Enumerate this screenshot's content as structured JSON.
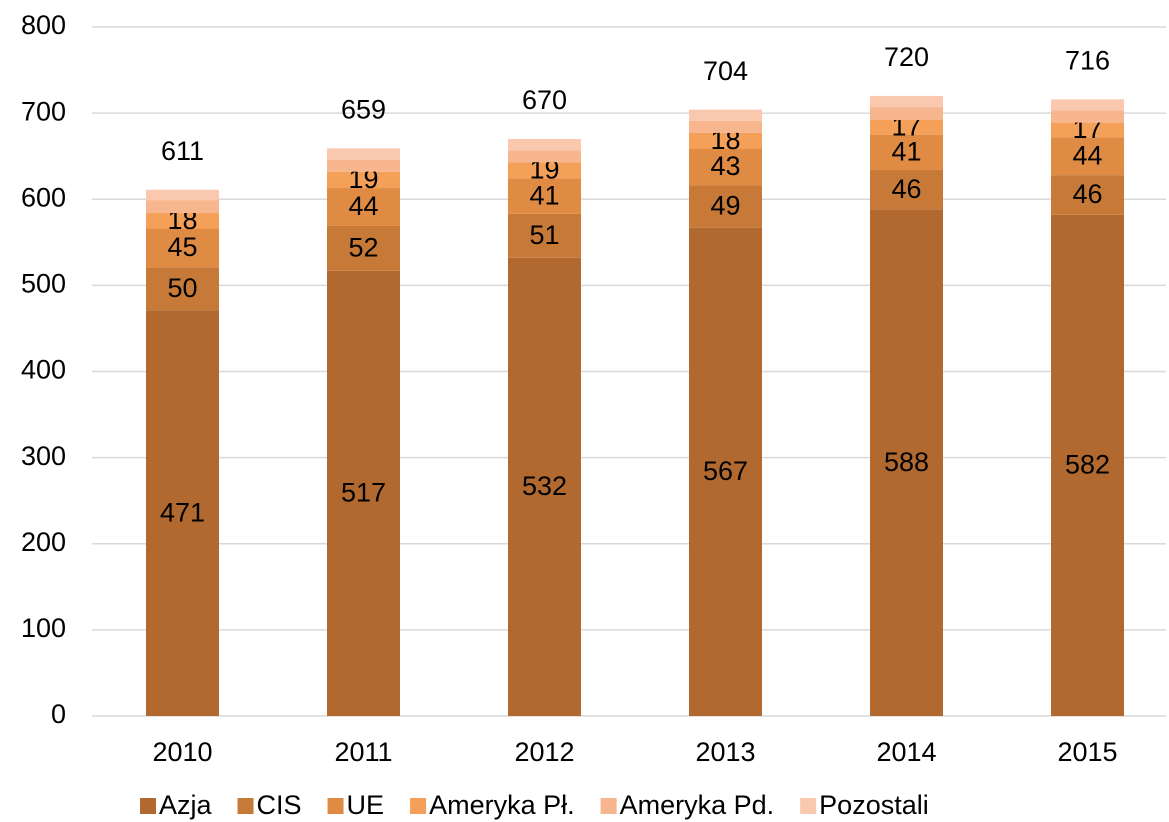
{
  "chart_data": {
    "type": "stacked_bar",
    "categories": [
      "2010",
      "2011",
      "2012",
      "2013",
      "2014",
      "2015"
    ],
    "series": [
      {
        "name": "Azja",
        "color": "#b1692f",
        "labels": true,
        "values": [
          471,
          517,
          532,
          567,
          588,
          582
        ]
      },
      {
        "name": "CIS",
        "color": "#c77a37",
        "labels": true,
        "values": [
          50,
          52,
          51,
          49,
          46,
          46
        ]
      },
      {
        "name": "UE",
        "color": "#e08b44",
        "labels": true,
        "values": [
          45,
          44,
          41,
          43,
          41,
          44
        ]
      },
      {
        "name": "Ameryka Pł.",
        "color": "#f5a058",
        "labels": true,
        "values": [
          18,
          19,
          19,
          18,
          17,
          17
        ]
      },
      {
        "name": "Ameryka Pd.",
        "color": "#f7b68d",
        "labels": false,
        "values": [
          15,
          14,
          14,
          14,
          15,
          14
        ]
      },
      {
        "name": "Pozostali",
        "color": "#f9c8ae",
        "labels": false,
        "values": [
          12,
          13,
          13,
          13,
          13,
          13
        ]
      }
    ],
    "totals": [
      611,
      659,
      670,
      704,
      720,
      716
    ],
    "ylim": [
      0,
      800
    ],
    "yticks": [
      0,
      100,
      200,
      300,
      400,
      500,
      600,
      700,
      800
    ],
    "grid": true,
    "legend": "bottom"
  }
}
